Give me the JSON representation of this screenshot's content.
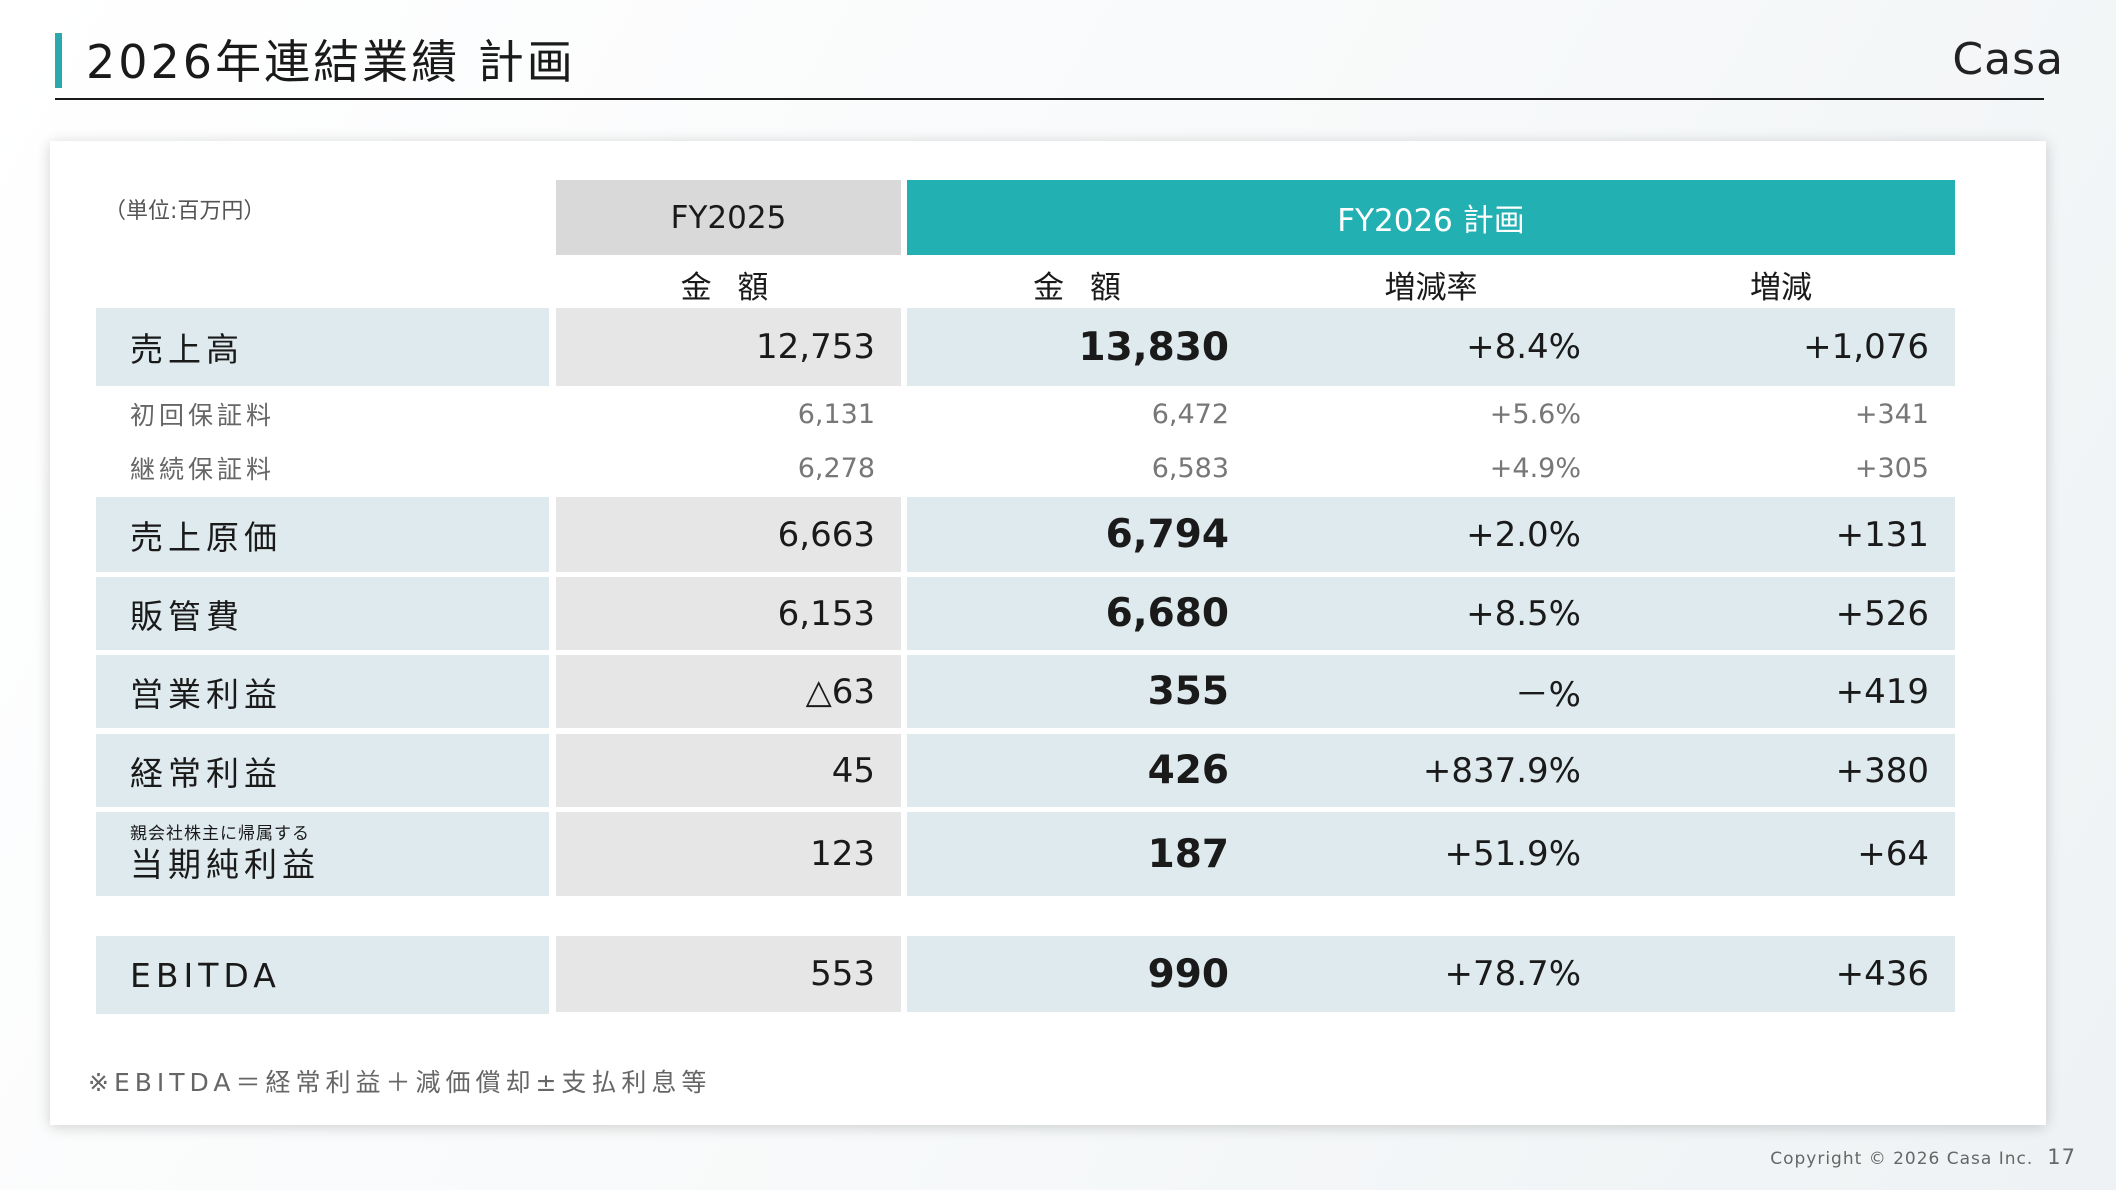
{
  "header": {
    "title": "2026年連結業績 計画",
    "logo": "Casa"
  },
  "table": {
    "unit": "（単位:百万円）",
    "col_prev": "FY2025",
    "col_plan": "FY2026 計画",
    "sub_amount_prev": "金 額",
    "sub_amount_plan": "金 額",
    "sub_rate": "増減率",
    "sub_diff": "増減",
    "rows": [
      {
        "label": "売上高",
        "prev": "12,753",
        "amount": "13,830",
        "rate": "+8.4%",
        "diff": "+1,076"
      },
      {
        "label": "初回保証料",
        "prev": "6,131",
        "amount": "6,472",
        "rate": "+5.6%",
        "diff": "+341"
      },
      {
        "label": "継続保証料",
        "prev": "6,278",
        "amount": "6,583",
        "rate": "+4.9%",
        "diff": "+305"
      },
      {
        "label": "売上原価",
        "prev": "6,663",
        "amount": "6,794",
        "rate": "+2.0%",
        "diff": "+131"
      },
      {
        "label": "販管費",
        "prev": "6,153",
        "amount": "6,680",
        "rate": "+8.5%",
        "diff": "+526"
      },
      {
        "label": "営業利益",
        "prev": "△63",
        "amount": "355",
        "rate": "－%",
        "diff": "+419"
      },
      {
        "label": "経常利益",
        "prev": "45",
        "amount": "426",
        "rate": "+837.9%",
        "diff": "+380"
      },
      {
        "label_small": "親会社株主に帰属する",
        "label": "当期純利益",
        "prev": "123",
        "amount": "187",
        "rate": "+51.9%",
        "diff": "+64"
      },
      {
        "label": "EBITDA",
        "prev": "553",
        "amount": "990",
        "rate": "+78.7%",
        "diff": "+436"
      }
    ],
    "note": "※EBITDA＝経常利益＋減価償却±支払利息等"
  },
  "footer": {
    "copyright": "Copyright © 2026 Casa Inc.",
    "page": "17"
  },
  "colors": {
    "accent": "#22b0b3",
    "row_tint": "#dfeaee",
    "prev_col": "#e6e6e6"
  }
}
